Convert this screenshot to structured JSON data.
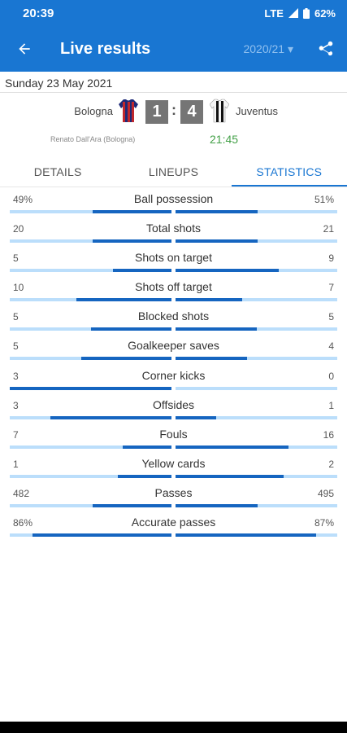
{
  "status_bar": {
    "time": "20:39",
    "network": "LTE",
    "battery": "62%"
  },
  "app_bar": {
    "title": "Live results",
    "season": "2020/21 ▾"
  },
  "match": {
    "date": "Sunday 23 May 2021",
    "home_team": "Bologna",
    "away_team": "Juventus",
    "home_score": "1",
    "separator": ":",
    "away_score": "4",
    "referee": "Renato Dall'Ara (Bologna)",
    "kickoff": "21:45"
  },
  "tabs": [
    {
      "label": "DETAILS",
      "active": false
    },
    {
      "label": "LINEUPS",
      "active": false
    },
    {
      "label": "STATISTICS",
      "active": true
    }
  ],
  "stats": [
    {
      "label": "Ball possession",
      "home": "49%",
      "away": "51%",
      "home_share": 0.49,
      "away_share": 0.51
    },
    {
      "label": "Total shots",
      "home": "20",
      "away": "21",
      "home_share": 0.49,
      "away_share": 0.51
    },
    {
      "label": "Shots on target",
      "home": "5",
      "away": "9",
      "home_share": 0.36,
      "away_share": 0.64
    },
    {
      "label": "Shots off target",
      "home": "10",
      "away": "7",
      "home_share": 0.59,
      "away_share": 0.41
    },
    {
      "label": "Blocked shots",
      "home": "5",
      "away": "5",
      "home_share": 0.5,
      "away_share": 0.5
    },
    {
      "label": "Goalkeeper saves",
      "home": "5",
      "away": "4",
      "home_share": 0.56,
      "away_share": 0.44
    },
    {
      "label": "Corner kicks",
      "home": "3",
      "away": "0",
      "home_share": 1.0,
      "away_share": 0.0
    },
    {
      "label": "Offsides",
      "home": "3",
      "away": "1",
      "home_share": 0.75,
      "away_share": 0.25
    },
    {
      "label": "Fouls",
      "home": "7",
      "away": "16",
      "home_share": 0.3,
      "away_share": 0.7
    },
    {
      "label": "Yellow cards",
      "home": "1",
      "away": "2",
      "home_share": 0.33,
      "away_share": 0.67
    },
    {
      "label": "Passes",
      "home": "482",
      "away": "495",
      "home_share": 0.49,
      "away_share": 0.51
    },
    {
      "label": "Accurate passes",
      "home": "86%",
      "away": "87%",
      "home_share": 0.86,
      "away_share": 0.87
    }
  ],
  "colors": {
    "primary": "#1976d2",
    "bar_fill": "#1565c0",
    "bar_track": "#bbdefb",
    "kickoff": "#43a047",
    "score_box": "#757575"
  },
  "icons": {
    "back": "arrow-back-icon",
    "share": "share-icon",
    "signal": "signal-icon",
    "battery": "battery-icon"
  }
}
